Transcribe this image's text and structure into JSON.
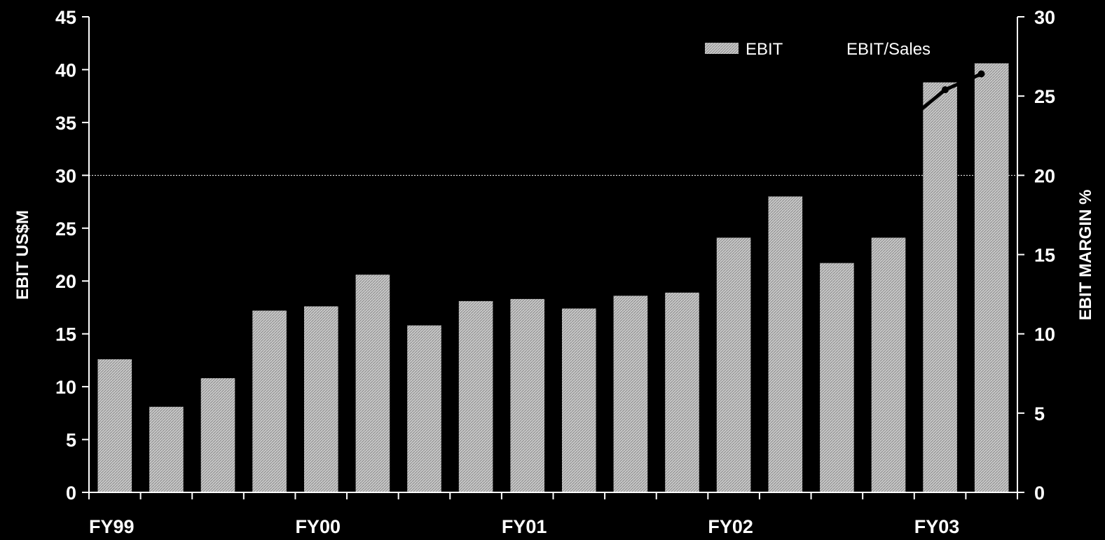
{
  "chart_data": {
    "type": "bar",
    "xlabel": "",
    "ylabel": "EBIT US$M",
    "y2label": "EBIT MARGIN %",
    "ylim": [
      0,
      45
    ],
    "y2lim": [
      0,
      30
    ],
    "yticks": [
      0,
      5,
      10,
      15,
      20,
      25,
      30,
      35,
      40,
      45
    ],
    "y2ticks": [
      0,
      5,
      10,
      15,
      20,
      25,
      30
    ],
    "group_labels": [
      {
        "label": "FY99",
        "index": 0
      },
      {
        "label": "FY00",
        "index": 4
      },
      {
        "label": "FY01",
        "index": 8
      },
      {
        "label": "FY02",
        "index": 12
      },
      {
        "label": "FY03",
        "index": 16
      }
    ],
    "series": [
      {
        "name": "EBIT",
        "axis": "left",
        "values": [
          12.6,
          8.1,
          10.8,
          17.2,
          17.6,
          20.6,
          15.8,
          18.1,
          18.3,
          17.4,
          18.6,
          18.9,
          24.1,
          28.0,
          21.7,
          24.1,
          38.8,
          40.6
        ]
      },
      {
        "name": "EBIT/Sales",
        "axis": "right",
        "type": "line",
        "points": [
          [
            16,
            23.8
          ],
          [
            16.6,
            25.4
          ],
          [
            17.3,
            26.4
          ]
        ]
      }
    ],
    "gridline_y": 30,
    "legend_position": "top-right",
    "colors": {
      "background": "#000000",
      "bar_fill": "#d3d3d3",
      "text": "#ffffff",
      "line": "#000000"
    }
  }
}
